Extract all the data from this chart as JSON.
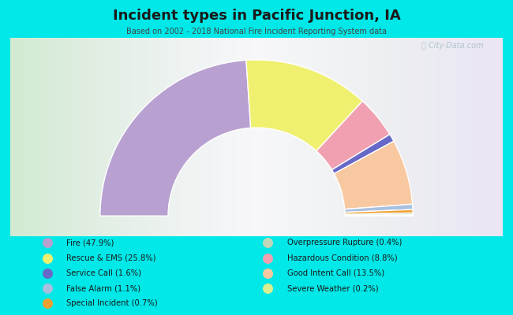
{
  "title": "Incident types in Pacific Junction, IA",
  "subtitle": "Based on 2002 - 2018 National Fire Incident Reporting System data",
  "watermark": "ⓘ City-Data.com",
  "background_color": "#00e8e8",
  "segments": [
    {
      "label": "Fire (47.9%)",
      "value": 47.9,
      "color": "#b8a0d0"
    },
    {
      "label": "Rescue & EMS (25.8%)",
      "value": 25.8,
      "color": "#f0f070"
    },
    {
      "label": "Hazardous Condition (8.8%)",
      "value": 8.8,
      "color": "#f0a0b0"
    },
    {
      "label": "Service Call (1.6%)",
      "value": 1.6,
      "color": "#6868c8"
    },
    {
      "label": "Good Intent Call (13.5%)",
      "value": 13.5,
      "color": "#f8c8a0"
    },
    {
      "label": "False Alarm (1.1%)",
      "value": 1.1,
      "color": "#a8c0e0"
    },
    {
      "label": "Special Incident (0.7%)",
      "value": 0.7,
      "color": "#f0a030"
    },
    {
      "label": "Overpressure Rupture (0.4%)",
      "value": 0.4,
      "color": "#c0d8b8"
    },
    {
      "label": "Severe Weather (0.2%)",
      "value": 0.2,
      "color": "#d8f090"
    }
  ],
  "legend_order": [
    {
      "label": "Fire (47.9%)",
      "color": "#b8a0d0"
    },
    {
      "label": "Rescue & EMS (25.8%)",
      "color": "#f0f070"
    },
    {
      "label": "Service Call (1.6%)",
      "color": "#6868c8"
    },
    {
      "label": "False Alarm (1.1%)",
      "color": "#a8c0e0"
    },
    {
      "label": "Special Incident (0.7%)",
      "color": "#f0a030"
    },
    {
      "label": "Overpressure Rupture (0.4%)",
      "color": "#c0d8b8"
    },
    {
      "label": "Hazardous Condition (8.8%)",
      "color": "#f0a0b0"
    },
    {
      "label": "Good Intent Call (13.5%)",
      "color": "#f8c8a0"
    },
    {
      "label": "Severe Weather (0.2%)",
      "color": "#d8f090"
    }
  ]
}
